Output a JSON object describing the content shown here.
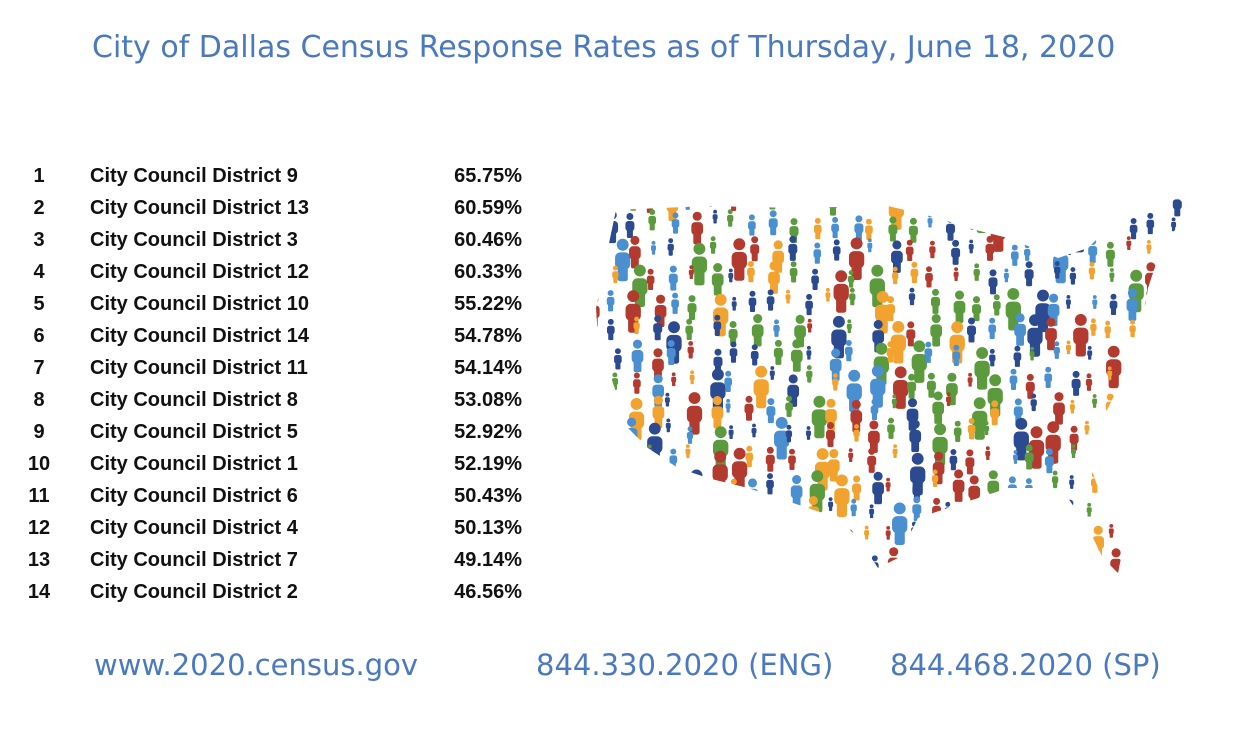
{
  "title": "City of Dallas Census Response Rates as of Thursday, June 18, 2020",
  "ranking": [
    {
      "rank": "1",
      "district": "City Council District 9",
      "rate": "65.75%"
    },
    {
      "rank": "2",
      "district": "City Council District 13",
      "rate": "60.59%"
    },
    {
      "rank": "3",
      "district": "City Council District 3",
      "rate": "60.46%"
    },
    {
      "rank": "4",
      "district": "City Council District 12",
      "rate": "60.33%"
    },
    {
      "rank": "5",
      "district": "City Council District 10",
      "rate": "55.22%"
    },
    {
      "rank": "6",
      "district": "City Council District 14",
      "rate": "54.78%"
    },
    {
      "rank": "7",
      "district": "City Council District 11",
      "rate": "54.14%"
    },
    {
      "rank": "8",
      "district": "City Council District 8",
      "rate": "53.08%"
    },
    {
      "rank": "9",
      "district": "City Council District 5",
      "rate": "52.92%"
    },
    {
      "rank": "10",
      "district": "City Council District 1",
      "rate": "52.19%"
    },
    {
      "rank": "11",
      "district": "City Council District 6",
      "rate": "50.43%"
    },
    {
      "rank": "12",
      "district": "City Council District 4",
      "rate": "50.13%"
    },
    {
      "rank": "13",
      "district": "City Council District 7",
      "rate": "49.14%"
    },
    {
      "rank": "14",
      "district": "City Council District 2",
      "rate": "46.56%"
    }
  ],
  "map": {
    "icon": "us-map-of-people-icon",
    "person_icon": "person-icon",
    "colors": [
      "#2c4a8f",
      "#b23a2e",
      "#f2a22e",
      "#5b9a3d",
      "#4a8fcf"
    ]
  },
  "footer": {
    "website": "www.2020.census.gov",
    "phone_english": "844.330.2020 (ENG)",
    "phone_spanish": "844.468.2020 (SP)"
  }
}
